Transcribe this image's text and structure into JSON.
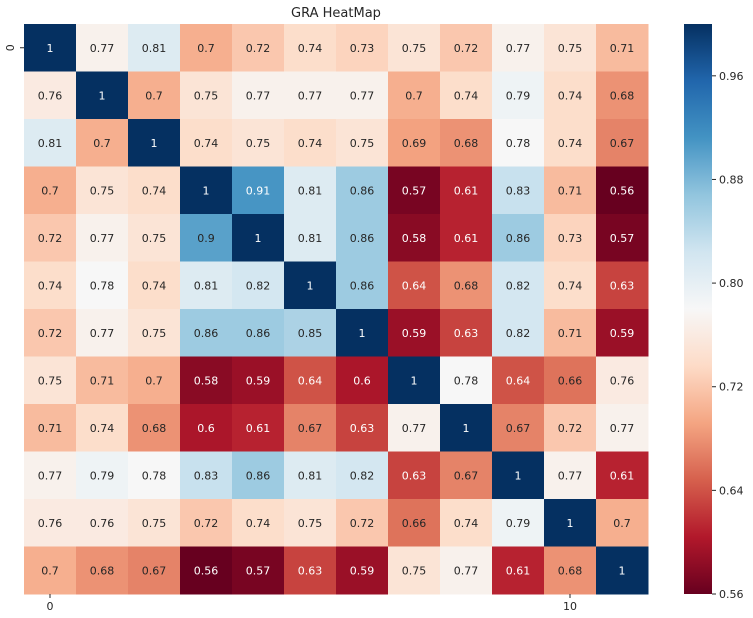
{
  "chart_data": {
    "type": "heatmap",
    "title": "GRA HeatMap",
    "xlabel": "",
    "ylabel": "",
    "x_tick_labels": [
      {
        "index": 0,
        "label": "0"
      },
      {
        "index": 10,
        "label": "10"
      }
    ],
    "y_tick_labels": [
      {
        "index": 0,
        "label": "0"
      }
    ],
    "colormap": "RdBu",
    "vmin": 0.56,
    "vmax": 1,
    "colorbar_ticks": [
      0.96,
      0.88,
      0.8,
      0.72,
      0.64,
      0.56
    ],
    "colorbar_tick_labels": [
      "0.96",
      "0.88",
      "0.80",
      "0.72",
      "0.64",
      "0.56"
    ],
    "matrix": [
      [
        1,
        0.77,
        0.81,
        0.7,
        0.72,
        0.74,
        0.73,
        0.75,
        0.72,
        0.77,
        0.75,
        0.71
      ],
      [
        0.76,
        1,
        0.7,
        0.75,
        0.77,
        0.77,
        0.77,
        0.7,
        0.74,
        0.79,
        0.74,
        0.68
      ],
      [
        0.81,
        0.7,
        1,
        0.74,
        0.75,
        0.74,
        0.75,
        0.69,
        0.68,
        0.78,
        0.74,
        0.67
      ],
      [
        0.7,
        0.75,
        0.74,
        1,
        0.91,
        0.81,
        0.86,
        0.57,
        0.61,
        0.83,
        0.71,
        0.56
      ],
      [
        0.72,
        0.77,
        0.75,
        0.9,
        1,
        0.81,
        0.86,
        0.58,
        0.61,
        0.86,
        0.73,
        0.57
      ],
      [
        0.74,
        0.78,
        0.74,
        0.81,
        0.82,
        1,
        0.86,
        0.64,
        0.68,
        0.82,
        0.74,
        0.63
      ],
      [
        0.72,
        0.77,
        0.75,
        0.86,
        0.86,
        0.85,
        1,
        0.59,
        0.63,
        0.82,
        0.71,
        0.59
      ],
      [
        0.75,
        0.71,
        0.7,
        0.58,
        0.59,
        0.64,
        0.6,
        1,
        0.78,
        0.64,
        0.66,
        0.76
      ],
      [
        0.71,
        0.74,
        0.68,
        0.6,
        0.61,
        0.67,
        0.63,
        0.77,
        1,
        0.67,
        0.72,
        0.77
      ],
      [
        0.77,
        0.79,
        0.78,
        0.83,
        0.86,
        0.81,
        0.82,
        0.63,
        0.67,
        1,
        0.77,
        0.61
      ],
      [
        0.76,
        0.76,
        0.75,
        0.72,
        0.74,
        0.75,
        0.72,
        0.66,
        0.74,
        0.79,
        1,
        0.7
      ],
      [
        0.7,
        0.68,
        0.67,
        0.56,
        0.57,
        0.63,
        0.59,
        0.75,
        0.77,
        0.61,
        0.68,
        1
      ]
    ]
  }
}
